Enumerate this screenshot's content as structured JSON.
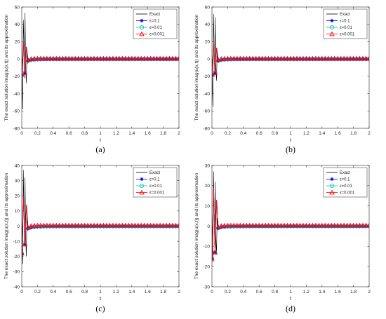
{
  "chart_data": [
    {
      "type": "line",
      "panel_label": "(a)",
      "xlabel": "t",
      "ylabel": "The exact solution imag(u(x,t)) and its approximation",
      "xlim": [
        0,
        2
      ],
      "ylim": [
        -80,
        60
      ],
      "xticks": [
        "0",
        "0.2",
        "0.4",
        "0.6",
        "0.8",
        "1",
        "1.2",
        "1.4",
        "1.6",
        "1.8",
        "2"
      ],
      "yticks": [
        "-80",
        "-60",
        "-40",
        "-20",
        "0",
        "20",
        "40",
        "60"
      ],
      "legend_position": "top-right",
      "series": [
        {
          "name": "Exact",
          "color": "#000000",
          "marker": "none",
          "x": [
            0,
            0.005,
            0.012,
            0.02,
            0.028,
            0.035,
            0.042,
            0.05,
            0.058,
            0.066,
            0.075,
            0.09,
            0.12,
            0.16,
            0.2,
            0.3,
            0.5,
            1.0,
            1.5,
            2.0
          ],
          "y": [
            0,
            -30,
            -58,
            45,
            20,
            -22,
            53,
            -12,
            -28,
            10,
            -5,
            -3,
            -2,
            -1,
            -0.5,
            0,
            0,
            0,
            0,
            0
          ]
        },
        {
          "name": "ϵ=0.1",
          "color": "#0000ff",
          "marker": "star",
          "x": [
            0,
            0.02,
            0.04,
            0.06,
            0.08,
            0.1,
            0.15,
            0.2,
            0.3,
            0.5,
            1.0,
            1.5,
            2.0
          ],
          "y": [
            -18,
            20,
            -16,
            14,
            -2,
            -1.5,
            -1,
            -0.8,
            -0.5,
            -0.4,
            -0.4,
            -0.4,
            -0.4
          ]
        },
        {
          "name": "ϵ=0.01",
          "color": "#00bfbf",
          "marker": "circle",
          "x": [
            0,
            0.02,
            0.04,
            0.06,
            0.08,
            0.1,
            0.15,
            0.2,
            0.3,
            0.5,
            1.0,
            1.5,
            2.0
          ],
          "y": [
            -18,
            20,
            -16,
            14,
            -2,
            -1,
            -0.6,
            -0.3,
            0,
            0,
            0,
            0,
            0
          ]
        },
        {
          "name": "ϵ=0.001",
          "color": "#ff0000",
          "marker": "triangle",
          "x": [
            0,
            0.02,
            0.04,
            0.06,
            0.08,
            0.1,
            0.15,
            0.2,
            0.3,
            0.5,
            1.0,
            1.5,
            2.0
          ],
          "y": [
            -18,
            20,
            -16,
            14,
            -1,
            0,
            0.3,
            0.5,
            0.5,
            0.5,
            0.5,
            0.5,
            0.5
          ]
        }
      ]
    },
    {
      "type": "line",
      "panel_label": "(b)",
      "xlabel": "t",
      "ylabel": "The exact solution imag(u(x,t)) and its approximation",
      "xlim": [
        0,
        2
      ],
      "ylim": [
        -80,
        60
      ],
      "xticks": [
        "0",
        "0.2",
        "0.4",
        "0.6",
        "0.8",
        "1",
        "1.2",
        "1.4",
        "1.6",
        "1.8",
        "2"
      ],
      "yticks": [
        "-80",
        "-60",
        "-40",
        "-20",
        "0",
        "20",
        "40",
        "60"
      ],
      "legend_position": "top-right",
      "series": [
        {
          "name": "Exact",
          "color": "#000000",
          "marker": "none",
          "x": [
            0,
            0.005,
            0.012,
            0.02,
            0.028,
            0.035,
            0.042,
            0.05,
            0.058,
            0.066,
            0.075,
            0.09,
            0.12,
            0.16,
            0.2,
            0.3,
            0.5,
            1.0,
            1.5,
            2.0
          ],
          "y": [
            0,
            -28,
            -55,
            52,
            15,
            -20,
            48,
            -10,
            -25,
            8,
            -4,
            -3,
            -2,
            -1,
            -0.5,
            0,
            0,
            0,
            0,
            0
          ]
        },
        {
          "name": "ϵ=0.1",
          "color": "#0000ff",
          "marker": "star",
          "x": [
            0,
            0.02,
            0.04,
            0.06,
            0.08,
            0.1,
            0.15,
            0.2,
            0.3,
            0.5,
            1.0,
            1.5,
            2.0
          ],
          "y": [
            -18,
            18,
            -16,
            13,
            -2,
            -1.5,
            -1,
            -0.8,
            -0.5,
            -0.4,
            -0.4,
            -0.4,
            -0.4
          ]
        },
        {
          "name": "ϵ=0.01",
          "color": "#00bfbf",
          "marker": "circle",
          "x": [
            0,
            0.02,
            0.04,
            0.06,
            0.08,
            0.1,
            0.15,
            0.2,
            0.3,
            0.5,
            1.0,
            1.5,
            2.0
          ],
          "y": [
            -18,
            18,
            -16,
            13,
            -2,
            -1,
            -0.6,
            -0.3,
            0,
            0,
            0,
            0,
            0
          ]
        },
        {
          "name": "ϵ=0.001",
          "color": "#ff0000",
          "marker": "triangle",
          "x": [
            0,
            0.02,
            0.04,
            0.06,
            0.08,
            0.1,
            0.15,
            0.2,
            0.3,
            0.5,
            1.0,
            1.5,
            2.0
          ],
          "y": [
            -18,
            18,
            -16,
            13,
            -1,
            0,
            0.3,
            0.5,
            0.5,
            0.5,
            0.5,
            0.5,
            0.5
          ]
        }
      ]
    },
    {
      "type": "line",
      "panel_label": "(c)",
      "xlabel": "t",
      "ylabel": "The exact solution imag(u(x,t)) and its approximation",
      "xlim": [
        0,
        2
      ],
      "ylim": [
        -40,
        40
      ],
      "xticks": [
        "0",
        "0.2",
        "0.4",
        "0.6",
        "0.8",
        "1",
        "1.2",
        "1.4",
        "1.6",
        "1.8",
        "2"
      ],
      "yticks": [
        "-40",
        "-30",
        "-20",
        "-10",
        "0",
        "10",
        "20",
        "30",
        "40"
      ],
      "legend_position": "top-right",
      "series": [
        {
          "name": "Exact",
          "color": "#000000",
          "marker": "none",
          "x": [
            0,
            0.005,
            0.012,
            0.02,
            0.028,
            0.035,
            0.042,
            0.05,
            0.058,
            0.066,
            0.075,
            0.09,
            0.12,
            0.16,
            0.2,
            0.3,
            0.5,
            1.0,
            1.5,
            2.0
          ],
          "y": [
            0,
            -15,
            -25,
            37,
            10,
            -12,
            32,
            -8,
            -20,
            6,
            -3,
            -2,
            -1.5,
            -1,
            -0.5,
            0,
            0,
            0,
            0,
            0
          ]
        },
        {
          "name": "ϵ=0.1",
          "color": "#0000ff",
          "marker": "star",
          "x": [
            0,
            0.02,
            0.04,
            0.06,
            0.08,
            0.1,
            0.15,
            0.2,
            0.3,
            0.5,
            1.0,
            1.5,
            2.0
          ],
          "y": [
            -18,
            20,
            -12,
            14,
            -1.5,
            -1,
            -0.8,
            -0.6,
            -0.4,
            -0.3,
            -0.3,
            -0.3,
            -0.3
          ]
        },
        {
          "name": "ϵ=0.01",
          "color": "#00bfbf",
          "marker": "circle",
          "x": [
            0,
            0.02,
            0.04,
            0.06,
            0.08,
            0.1,
            0.15,
            0.2,
            0.3,
            0.5,
            1.0,
            1.5,
            2.0
          ],
          "y": [
            -18,
            20,
            -12,
            14,
            -1.5,
            -1,
            -0.5,
            -0.2,
            0,
            0,
            0,
            0,
            0
          ]
        },
        {
          "name": "ϵ=0.001",
          "color": "#ff0000",
          "marker": "triangle",
          "x": [
            0,
            0.02,
            0.04,
            0.06,
            0.08,
            0.1,
            0.15,
            0.2,
            0.3,
            0.5,
            1.0,
            1.5,
            2.0
          ],
          "y": [
            -18,
            20,
            -12,
            14,
            -1,
            0,
            0.2,
            0.4,
            0.4,
            0.4,
            0.4,
            0.4,
            0.4
          ]
        }
      ]
    },
    {
      "type": "line",
      "panel_label": "(d)",
      "xlabel": "t",
      "ylabel": "The exact solution imag(u(x,t)) and its approximation",
      "xlim": [
        0,
        2
      ],
      "ylim": [
        -30,
        30
      ],
      "xticks": [
        "0",
        "0.2",
        "0.4",
        "0.6",
        "0.8",
        "1",
        "1.2",
        "1.4",
        "1.6",
        "1.8",
        "2"
      ],
      "yticks": [
        "-30",
        "-20",
        "-10",
        "0",
        "10",
        "20",
        "30"
      ],
      "legend_position": "top-right",
      "series": [
        {
          "name": "Exact",
          "color": "#000000",
          "marker": "none",
          "x": [
            0,
            0.005,
            0.012,
            0.02,
            0.028,
            0.035,
            0.042,
            0.05,
            0.058,
            0.066,
            0.075,
            0.09,
            0.12,
            0.16,
            0.2,
            0.3,
            0.5,
            1.0,
            1.5,
            2.0
          ],
          "y": [
            0,
            -10,
            -18,
            27,
            8,
            -9,
            22,
            -6,
            -14,
            4,
            -2,
            -1.5,
            -1,
            -0.5,
            -0.2,
            0,
            0,
            0,
            0,
            0
          ]
        },
        {
          "name": "ϵ=0.1",
          "color": "#0000ff",
          "marker": "star",
          "x": [
            0,
            0.02,
            0.04,
            0.06,
            0.08,
            0.1,
            0.15,
            0.2,
            0.3,
            0.5,
            1.0,
            1.5,
            2.0
          ],
          "y": [
            -16,
            19,
            -13,
            13,
            -1,
            -0.6,
            -0.5,
            -0.4,
            -0.3,
            -0.2,
            -0.2,
            -0.2,
            -0.2
          ]
        },
        {
          "name": "ϵ=0.01",
          "color": "#00bfbf",
          "marker": "circle",
          "x": [
            0,
            0.02,
            0.04,
            0.06,
            0.08,
            0.1,
            0.15,
            0.2,
            0.3,
            0.5,
            1.0,
            1.5,
            2.0
          ],
          "y": [
            -16,
            19,
            -13,
            13,
            -1,
            -0.5,
            -0.3,
            -0.1,
            0,
            0,
            0,
            0,
            0
          ]
        },
        {
          "name": "ϵ=0.001",
          "color": "#ff0000",
          "marker": "triangle",
          "x": [
            0,
            0.02,
            0.04,
            0.06,
            0.08,
            0.1,
            0.15,
            0.2,
            0.3,
            0.5,
            1.0,
            1.5,
            2.0
          ],
          "y": [
            -16,
            19,
            -13,
            13,
            -0.5,
            0,
            0.2,
            0.3,
            0.3,
            0.3,
            0.3,
            0.3,
            0.3
          ]
        }
      ]
    }
  ]
}
